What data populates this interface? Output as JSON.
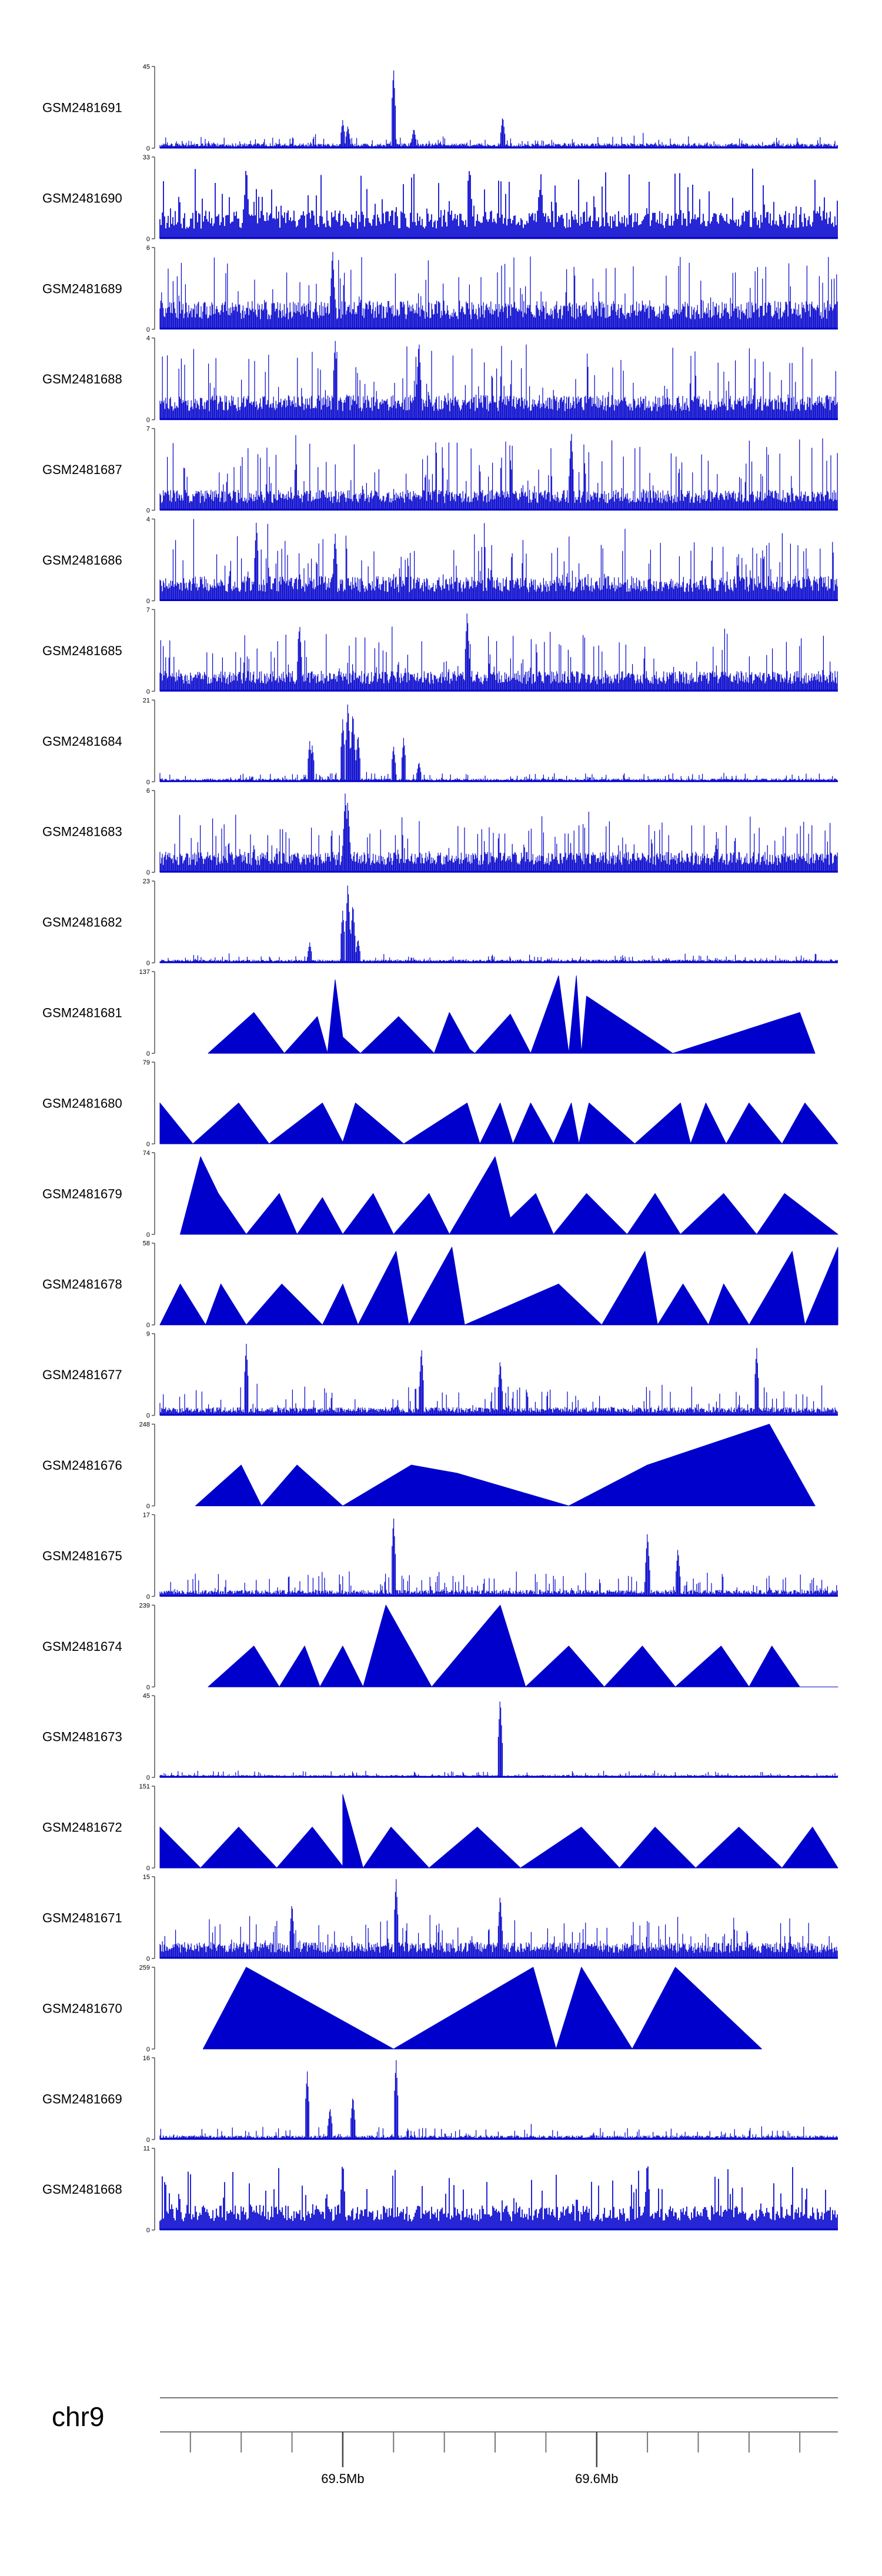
{
  "chart_data": {
    "type": "area",
    "title": "",
    "style": {
      "track_color": "#0000CC",
      "axis_color": "#555555",
      "track_count": 24,
      "grid": false,
      "legend": "none",
      "x_axis_position": "bottom"
    },
    "chromosome": "chr9",
    "x_axis": {
      "range_mb": [
        69.428,
        69.695
      ],
      "minor_ticks_mb": [
        69.44,
        69.46,
        69.48,
        69.5,
        69.52,
        69.54,
        69.56,
        69.58,
        69.6,
        69.62,
        69.64,
        69.66,
        69.68
      ],
      "major_ticks": [
        {
          "value": 69.5,
          "label": "69.5Mb"
        },
        {
          "value": 69.6,
          "label": "69.6Mb"
        }
      ]
    },
    "tracks": [
      {
        "name": "GSM2481691",
        "ymax": 45,
        "ymin": 0,
        "style": "spiky",
        "density": 1,
        "base": 0.06,
        "variance": 0.1,
        "peaks": [
          [
            69.5,
            0.35
          ],
          [
            69.502,
            0.28
          ],
          [
            69.52,
            1.0
          ],
          [
            69.528,
            0.25
          ],
          [
            69.563,
            0.4
          ]
        ]
      },
      {
        "name": "GSM2481690",
        "ymax": 33,
        "ymin": 0,
        "style": "spiky",
        "density": 2,
        "base": 0.35,
        "variance": 0.6,
        "peaks": [
          [
            69.462,
            0.95
          ],
          [
            69.55,
            0.95
          ],
          [
            69.578,
            0.82
          ]
        ]
      },
      {
        "name": "GSM2481689",
        "ymax": 6,
        "ymin": 0,
        "style": "spiky",
        "density": 1,
        "base": 0.35,
        "variance": 0.65,
        "peaks": [
          [
            69.496,
            1.0
          ]
        ]
      },
      {
        "name": "GSM2481688",
        "ymax": 4,
        "ymin": 0,
        "style": "spiky",
        "density": 1,
        "base": 0.3,
        "variance": 0.7,
        "peaks": [
          [
            69.497,
            1.0
          ],
          [
            69.53,
            1.0
          ]
        ]
      },
      {
        "name": "GSM2481687",
        "ymax": 7,
        "ymin": 0,
        "style": "spiky",
        "density": 1,
        "base": 0.25,
        "variance": 0.7,
        "peaks": [
          [
            69.59,
            1.0
          ]
        ]
      },
      {
        "name": "GSM2481686",
        "ymax": 4,
        "ymin": 0,
        "style": "spiky",
        "density": 1,
        "base": 0.3,
        "variance": 0.55,
        "peaks": [
          [
            69.466,
            1.0
          ],
          [
            69.497,
            0.85
          ]
        ]
      },
      {
        "name": "GSM2481685",
        "ymax": 7,
        "ymin": 0,
        "style": "spiky",
        "density": 1,
        "base": 0.25,
        "variance": 0.55,
        "peaks": [
          [
            69.549,
            1.0
          ],
          [
            69.483,
            0.85
          ]
        ]
      },
      {
        "name": "GSM2481684",
        "ymax": 21,
        "ymin": 0,
        "style": "spiky",
        "density": 1,
        "base": 0.04,
        "variance": 0.08,
        "peaks": [
          [
            69.487,
            0.5
          ],
          [
            69.488,
            0.45
          ],
          [
            69.5,
            0.78
          ],
          [
            69.502,
            1.0
          ],
          [
            69.504,
            0.88
          ],
          [
            69.506,
            0.6
          ],
          [
            69.52,
            0.45
          ],
          [
            69.524,
            0.55
          ],
          [
            69.53,
            0.25
          ]
        ]
      },
      {
        "name": "GSM2481683",
        "ymax": 6,
        "ymin": 0,
        "style": "spiky",
        "density": 1,
        "base": 0.25,
        "variance": 0.5,
        "peaks": [
          [
            69.501,
            1.0
          ],
          [
            69.502,
            0.9
          ]
        ]
      },
      {
        "name": "GSM2481682",
        "ymax": 23,
        "ymin": 0,
        "style": "spiky",
        "density": 1,
        "base": 0.04,
        "variance": 0.08,
        "peaks": [
          [
            69.487,
            0.25
          ],
          [
            69.5,
            0.65
          ],
          [
            69.502,
            1.0
          ],
          [
            69.504,
            0.75
          ],
          [
            69.506,
            0.3
          ]
        ]
      },
      {
        "name": "GSM2481681",
        "ymax": 137,
        "ymin": 0,
        "style": "triangles",
        "points": [
          [
            69.447,
            0
          ],
          [
            69.465,
            0.5
          ],
          [
            69.477,
            0
          ],
          [
            69.49,
            0.45
          ],
          [
            69.494,
            0
          ],
          [
            69.497,
            0.9
          ],
          [
            69.5,
            0.2
          ],
          [
            69.507,
            0
          ],
          [
            69.522,
            0.45
          ],
          [
            69.536,
            0
          ],
          [
            69.542,
            0.5
          ],
          [
            69.55,
            0.05
          ],
          [
            69.552,
            0
          ],
          [
            69.566,
            0.48
          ],
          [
            69.574,
            0
          ],
          [
            69.585,
            0.95
          ],
          [
            69.589,
            0
          ],
          [
            69.592,
            0.95
          ],
          [
            69.594,
            0
          ],
          [
            69.596,
            0.7
          ],
          [
            69.63,
            0
          ],
          [
            69.68,
            0.5
          ],
          [
            69.686,
            0
          ]
        ]
      },
      {
        "name": "GSM2481680",
        "ymax": 79,
        "ymin": 0,
        "style": "triangles",
        "points": [
          [
            69.428,
            0.5
          ],
          [
            69.441,
            0
          ],
          [
            69.459,
            0.5
          ],
          [
            69.471,
            0
          ],
          [
            69.492,
            0.5
          ],
          [
            69.5,
            0.02
          ],
          [
            69.505,
            0.5
          ],
          [
            69.524,
            0
          ],
          [
            69.549,
            0.5
          ],
          [
            69.554,
            0
          ],
          [
            69.562,
            0.5
          ],
          [
            69.567,
            0
          ],
          [
            69.574,
            0.5
          ],
          [
            69.583,
            0
          ],
          [
            69.59,
            0.5
          ],
          [
            69.593,
            0
          ],
          [
            69.597,
            0.5
          ],
          [
            69.615,
            0
          ],
          [
            69.633,
            0.5
          ],
          [
            69.637,
            0
          ],
          [
            69.643,
            0.5
          ],
          [
            69.651,
            0
          ],
          [
            69.66,
            0.5
          ],
          [
            69.673,
            0
          ],
          [
            69.682,
            0.5
          ],
          [
            69.695,
            0
          ]
        ]
      },
      {
        "name": "GSM2481679",
        "ymax": 74,
        "ymin": 0,
        "style": "triangles",
        "points": [
          [
            69.436,
            0
          ],
          [
            69.444,
            0.95
          ],
          [
            69.451,
            0.5
          ],
          [
            69.462,
            0
          ],
          [
            69.475,
            0.5
          ],
          [
            69.482,
            0
          ],
          [
            69.492,
            0.45
          ],
          [
            69.5,
            0
          ],
          [
            69.512,
            0.5
          ],
          [
            69.52,
            0
          ],
          [
            69.534,
            0.5
          ],
          [
            69.542,
            0
          ],
          [
            69.56,
            0.95
          ],
          [
            69.566,
            0.2
          ],
          [
            69.576,
            0.5
          ],
          [
            69.583,
            0
          ],
          [
            69.596,
            0.5
          ],
          [
            69.612,
            0
          ],
          [
            69.623,
            0.5
          ],
          [
            69.633,
            0
          ],
          [
            69.65,
            0.5
          ],
          [
            69.663,
            0
          ],
          [
            69.674,
            0.5
          ],
          [
            69.695,
            0
          ]
        ]
      },
      {
        "name": "GSM2481678",
        "ymax": 58,
        "ymin": 0,
        "style": "triangles",
        "points": [
          [
            69.428,
            0
          ],
          [
            69.436,
            0.5
          ],
          [
            69.446,
            0
          ],
          [
            69.452,
            0.5
          ],
          [
            69.462,
            0
          ],
          [
            69.476,
            0.5
          ],
          [
            69.492,
            0
          ],
          [
            69.5,
            0.5
          ],
          [
            69.506,
            0
          ],
          [
            69.521,
            0.9
          ],
          [
            69.526,
            0
          ],
          [
            69.543,
            0.95
          ],
          [
            69.548,
            0
          ],
          [
            69.585,
            0.5
          ],
          [
            69.602,
            0
          ],
          [
            69.619,
            0.9
          ],
          [
            69.624,
            0
          ],
          [
            69.634,
            0.5
          ],
          [
            69.644,
            0
          ],
          [
            69.65,
            0.5
          ],
          [
            69.66,
            0
          ],
          [
            69.677,
            0.9
          ],
          [
            69.682,
            0
          ],
          [
            69.695,
            0.95
          ]
        ]
      },
      {
        "name": "GSM2481677",
        "ymax": 9,
        "ymin": 0,
        "style": "spiky",
        "density": 1,
        "base": 0.1,
        "variance": 0.3,
        "peaks": [
          [
            69.462,
            0.9
          ],
          [
            69.531,
            0.85
          ],
          [
            69.562,
            0.7
          ],
          [
            69.663,
            0.85
          ]
        ]
      },
      {
        "name": "GSM2481676",
        "ymax": 248,
        "ymin": 0,
        "style": "triangles",
        "points": [
          [
            69.442,
            0
          ],
          [
            69.46,
            0.5
          ],
          [
            69.468,
            0
          ],
          [
            69.482,
            0.5
          ],
          [
            69.5,
            0
          ],
          [
            69.527,
            0.5
          ],
          [
            69.545,
            0.4
          ],
          [
            69.589,
            0
          ],
          [
            69.62,
            0.5
          ],
          [
            69.668,
            1.0
          ],
          [
            69.686,
            0
          ]
        ]
      },
      {
        "name": "GSM2481675",
        "ymax": 17,
        "ymin": 0,
        "style": "spiky",
        "density": 1,
        "base": 0.08,
        "variance": 0.25,
        "peaks": [
          [
            69.52,
            1.0
          ],
          [
            69.62,
            0.8
          ],
          [
            69.632,
            0.6
          ]
        ]
      },
      {
        "name": "GSM2481674",
        "ymax": 239,
        "ymin": 0,
        "style": "triangles",
        "points": [
          [
            69.447,
            0
          ],
          [
            69.465,
            0.5
          ],
          [
            69.475,
            0
          ],
          [
            69.485,
            0.5
          ],
          [
            69.491,
            0
          ],
          [
            69.5,
            0.5
          ],
          [
            69.508,
            0
          ],
          [
            69.517,
            1.0
          ],
          [
            69.535,
            0
          ],
          [
            69.562,
            1.0
          ],
          [
            69.572,
            0
          ],
          [
            69.589,
            0.5
          ],
          [
            69.603,
            0
          ],
          [
            69.618,
            0.5
          ],
          [
            69.631,
            0
          ],
          [
            69.649,
            0.5
          ],
          [
            69.66,
            0
          ],
          [
            69.669,
            0.5
          ],
          [
            69.68,
            0
          ],
          [
            69.695,
            0
          ]
        ]
      },
      {
        "name": "GSM2481673",
        "ymax": 45,
        "ymin": 0,
        "style": "spiky",
        "density": 1,
        "base": 0.03,
        "variance": 0.06,
        "peaks": [
          [
            69.562,
            1.0
          ]
        ]
      },
      {
        "name": "GSM2481672",
        "ymax": 151,
        "ymin": 0,
        "style": "triangles",
        "points": [
          [
            69.428,
            0.5
          ],
          [
            69.444,
            0
          ],
          [
            69.459,
            0.5
          ],
          [
            69.474,
            0
          ],
          [
            69.488,
            0.5
          ],
          [
            69.5,
            0.02
          ],
          [
            69.5,
            0.9
          ],
          [
            69.508,
            0
          ],
          [
            69.519,
            0.5
          ],
          [
            69.534,
            0
          ],
          [
            69.553,
            0.5
          ],
          [
            69.57,
            0
          ],
          [
            69.594,
            0.5
          ],
          [
            69.609,
            0
          ],
          [
            69.623,
            0.5
          ],
          [
            69.639,
            0
          ],
          [
            69.656,
            0.5
          ],
          [
            69.673,
            0
          ],
          [
            69.685,
            0.5
          ],
          [
            69.695,
            0
          ]
        ]
      },
      {
        "name": "GSM2481671",
        "ymax": 15,
        "ymin": 0,
        "style": "spiky",
        "density": 1,
        "base": 0.2,
        "variance": 0.35,
        "peaks": [
          [
            69.48,
            0.7
          ],
          [
            69.521,
            1.0
          ],
          [
            69.562,
            0.8
          ]
        ]
      },
      {
        "name": "GSM2481670",
        "ymax": 259,
        "ymin": 0,
        "style": "triangles",
        "points": [
          [
            69.445,
            0
          ],
          [
            69.462,
            1.0
          ],
          [
            69.52,
            0
          ],
          [
            69.575,
            1.0
          ],
          [
            69.584,
            0
          ],
          [
            69.594,
            1.0
          ],
          [
            69.614,
            0
          ],
          [
            69.631,
            1.0
          ],
          [
            69.665,
            0
          ]
        ]
      },
      {
        "name": "GSM2481669",
        "ymax": 16,
        "ymin": 0,
        "style": "spiky",
        "density": 1,
        "base": 0.05,
        "variance": 0.12,
        "peaks": [
          [
            69.486,
            0.85
          ],
          [
            69.495,
            0.4
          ],
          [
            69.504,
            0.55
          ],
          [
            69.521,
            1.0
          ]
        ]
      },
      {
        "name": "GSM2481668",
        "ymax": 11,
        "ymin": 0,
        "style": "spiky",
        "density": 2,
        "base": 0.3,
        "variance": 0.55,
        "peaks": [
          [
            69.5,
            0.9
          ],
          [
            69.62,
            0.9
          ]
        ]
      }
    ]
  }
}
